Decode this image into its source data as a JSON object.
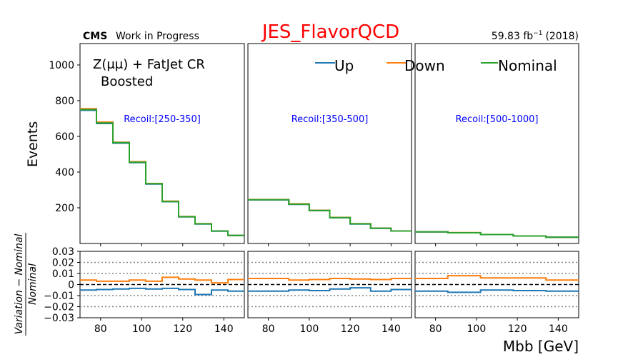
{
  "header": {
    "cms_label": "CMS",
    "cms_suffix": "Work in Progress",
    "title": "JES_FlavorQCD",
    "lumi_value": "59.83 fb",
    "lumi_exp": "−1",
    "lumi_year": "(2018)"
  },
  "colors": {
    "up": "#1f77b4",
    "down": "#ff7f0e",
    "nominal": "#2ca02c",
    "title": "#ff0000",
    "recoil_label": "#0000ff"
  },
  "chart_data": {
    "type": "line",
    "drawstyle": "step",
    "region_label": "Z(μμ) + FatJet CR",
    "region_sublabel": "Boosted",
    "legend": [
      "Up",
      "Down",
      "Nominal"
    ],
    "legend_location": "top",
    "xlabel": "Mbb [GeV]",
    "top_ylabel": "Events",
    "ratio_ylabel": "Variation − Nominal / Nominal",
    "xlim": [
      70,
      150
    ],
    "xticks": [
      80,
      100,
      120,
      140
    ],
    "top_ylim": [
      0,
      1120
    ],
    "top_yticks": [
      200,
      400,
      600,
      800,
      1000
    ],
    "ratio_ylim": [
      -0.03,
      0.03
    ],
    "ratio_yticks": [
      0.03,
      0.02,
      0.01,
      0,
      -0.01,
      -0.02,
      -0.03
    ],
    "ratio_ytick_labels": [
      "0.03",
      "0.02",
      "0.01",
      "0",
      "−0.01",
      "−0.02",
      "−0.03"
    ],
    "ratio_gridlines": [
      0.02,
      0.01,
      -0.01,
      -0.02
    ],
    "panels": [
      {
        "recoil": "Recoil:[250-350]",
        "edges": [
          70,
          78,
          86,
          94,
          102,
          110,
          118,
          126,
          134,
          142,
          150
        ],
        "nominal": [
          750,
          675,
          565,
          455,
          335,
          235,
          150,
          110,
          70,
          45
        ],
        "up": [
          746,
          672,
          562,
          453,
          333,
          234,
          149,
          109,
          69,
          45
        ],
        "down": [
          755,
          680,
          567,
          458,
          336,
          237,
          151,
          111,
          70,
          45
        ],
        "ratio_up": [
          -0.005,
          -0.0045,
          -0.004,
          -0.0035,
          -0.004,
          -0.0035,
          -0.0045,
          -0.009,
          -0.005,
          -0.006
        ],
        "ratio_down": [
          0.004,
          0.003,
          0.003,
          0.004,
          0.003,
          0.0065,
          0.005,
          0.004,
          0.0015,
          0.0045
        ]
      },
      {
        "recoil": "Recoil:[350-500]",
        "edges": [
          70,
          90,
          100,
          110,
          120,
          130,
          140,
          150
        ],
        "nominal": [
          245,
          220,
          185,
          145,
          110,
          85,
          70
        ],
        "up": [
          244,
          219,
          184,
          144,
          109,
          85,
          70
        ],
        "down": [
          246,
          222,
          186,
          146,
          111,
          86,
          70
        ],
        "ratio_up": [
          -0.006,
          -0.005,
          -0.0055,
          -0.004,
          -0.003,
          -0.006,
          -0.0045
        ],
        "ratio_down": [
          0.0055,
          0.004,
          0.0045,
          0.0055,
          0.005,
          0.0045,
          0.0055
        ]
      },
      {
        "recoil": "Recoil:[500-1000]",
        "edges": [
          70,
          86,
          102,
          118,
          134,
          150
        ],
        "nominal": [
          65,
          60,
          50,
          42,
          35
        ],
        "up": [
          65,
          60,
          50,
          42,
          35
        ],
        "down": [
          65,
          61,
          50,
          42,
          35
        ],
        "ratio_up": [
          -0.006,
          -0.007,
          -0.005,
          -0.0055,
          -0.006
        ],
        "ratio_down": [
          0.0055,
          0.008,
          0.006,
          0.006,
          0.004
        ]
      }
    ]
  }
}
